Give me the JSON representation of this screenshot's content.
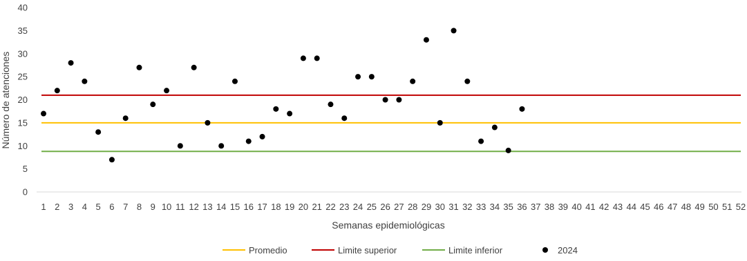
{
  "chart_data": {
    "type": "scatter",
    "xlabel": "Semanas epidemiológicas",
    "ylabel": "Número de atenciones",
    "ylim": [
      0,
      40
    ],
    "yticks": [
      0,
      5,
      10,
      15,
      20,
      25,
      30,
      35,
      40
    ],
    "x_categories": [
      "1",
      "2",
      "3",
      "4",
      "5",
      "6",
      "7",
      "8",
      "9",
      "10",
      "11",
      "12",
      "13",
      "14",
      "15",
      "16",
      "17",
      "18",
      "19",
      "20",
      "21",
      "22",
      "23",
      "24",
      "25",
      "26",
      "27",
      "28",
      "29",
      "30",
      "31",
      "32",
      "33",
      "34",
      "35",
      "36",
      "37",
      "38",
      "39",
      "40",
      "41",
      "42",
      "43",
      "44",
      "45",
      "46",
      "47",
      "48",
      "49",
      "50",
      "51",
      "52"
    ],
    "grid": false,
    "legend_position": "bottom",
    "series": [
      {
        "name": "Promedio",
        "type": "line",
        "color": "#FFC000",
        "value": 15
      },
      {
        "name": "Limite superior",
        "type": "line",
        "color": "#C00000",
        "value": 21
      },
      {
        "name": "Limite inferior",
        "type": "line",
        "color": "#70AD47",
        "value": 8.8
      },
      {
        "name": "2024",
        "type": "scatter",
        "color": "#000000",
        "x": [
          1,
          2,
          3,
          4,
          5,
          6,
          7,
          8,
          9,
          10,
          11,
          12,
          13,
          14,
          15,
          16,
          17,
          18,
          19,
          20,
          21,
          22,
          23,
          24,
          25,
          26,
          27,
          28,
          29,
          30,
          31,
          32,
          33,
          34,
          35,
          36
        ],
        "values": [
          17,
          22,
          28,
          24,
          13,
          7,
          16,
          27,
          19,
          22,
          10,
          27,
          15,
          10,
          24,
          11,
          12,
          18,
          17,
          29,
          29,
          19,
          16,
          25,
          25,
          20,
          20,
          24,
          33,
          15,
          35,
          24,
          11,
          14,
          9,
          18
        ]
      }
    ]
  }
}
